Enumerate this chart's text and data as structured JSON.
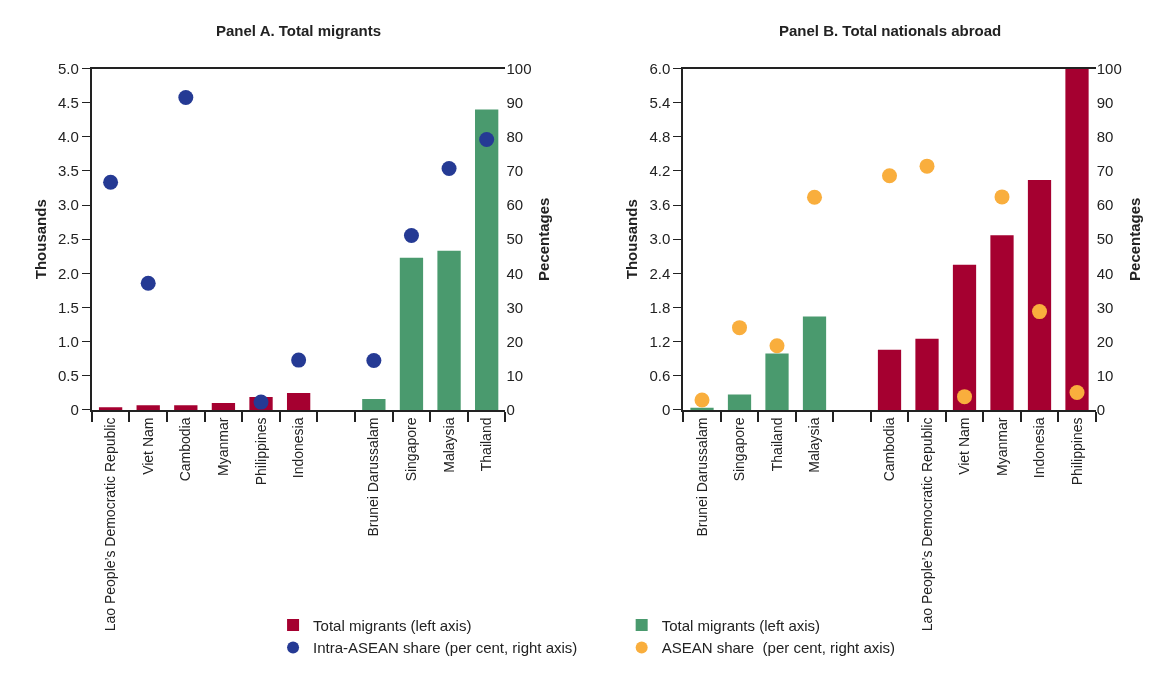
{
  "chart_data": [
    {
      "type": "bar",
      "title": "Panel A. Total migrants",
      "ylabel": "Thousands",
      "y2label": "Pecentages",
      "legend": "bottom",
      "marker": "circle",
      "categories": [
        "Lao People’s Democratic Republic",
        "Viet Nam",
        "Cambodia",
        "Myanmar",
        "Philippines",
        "Indonesia",
        null,
        "Brunei Darussalam",
        "Singapore",
        "Malaysia",
        "Thailand"
      ],
      "series": [
        {
          "name": "Total migrants (left axis)",
          "color": "#a50030",
          "values": [
            0.04,
            0.07,
            0.07,
            0.1,
            0.19,
            0.25,
            null,
            null,
            null,
            null,
            null
          ]
        },
        {
          "color": "#4a9a6e",
          "values": [
            null,
            null,
            null,
            null,
            null,
            null,
            null,
            0.16,
            2.23,
            2.33,
            4.4
          ]
        },
        {
          "name": "Intra-ASEAN share (per cent, right axis)",
          "type": "scatter",
          "axis": "y2",
          "color": "#253a94",
          "values": [
            66.7,
            37.1,
            91.5,
            null,
            2.3,
            14.6,
            null,
            14.5,
            51.1,
            70.7,
            79.2
          ]
        }
      ],
      "ylim": [
        0,
        5
      ],
      "yticks": [
        {
          "value": 0,
          "label": "0"
        },
        {
          "value": 0.5,
          "label": "0.5"
        },
        {
          "value": 1,
          "label": "1.0"
        },
        {
          "value": 1.5,
          "label": "1.5"
        },
        {
          "value": 2,
          "label": "2.0"
        },
        {
          "value": 2.5,
          "label": "2.5"
        },
        {
          "value": 3,
          "label": "3.0"
        },
        {
          "value": 3.5,
          "label": "3.5"
        },
        {
          "value": 4,
          "label": "4.0"
        },
        {
          "value": 4.5,
          "label": "4.5"
        },
        {
          "value": 5,
          "label": "5.0"
        }
      ],
      "y2lim": [
        0,
        100
      ],
      "y2ticks": [
        0,
        10,
        20,
        30,
        40,
        50,
        60,
        70,
        80,
        90,
        100
      ]
    },
    {
      "type": "bar",
      "title": "Panel B. Total nationals abroad",
      "ylabel": "Thousands",
      "y2label": "Pecentages",
      "legend": "bottom",
      "marker": "circle",
      "categories": [
        "Brunei Darussalam",
        "Singapore",
        "Thailand",
        "Malaysia",
        null,
        "Cambodia",
        "Lao People’s Democratic Republic",
        "Viet Nam",
        "Myanmar",
        "Indonesia",
        "Philippines"
      ],
      "series": [
        {
          "name": "Total migrants (left axis)",
          "color": "#4a9a6e",
          "values": [
            0.04,
            0.27,
            0.99,
            1.64,
            null,
            null,
            null,
            null,
            null,
            null,
            null
          ]
        },
        {
          "color": "#a50030",
          "values": [
            null,
            null,
            null,
            null,
            null,
            1.06,
            1.25,
            2.55,
            3.07,
            4.04,
            6.0
          ]
        },
        {
          "name": "ASEAN share  (per cent, right axis)",
          "type": "scatter",
          "axis": "y2",
          "color": "#f9ae3d",
          "values": [
            2.9,
            24.1,
            18.8,
            62.3,
            null,
            68.6,
            71.4,
            3.9,
            62.4,
            28.8,
            5.1
          ]
        }
      ],
      "ylim": [
        0,
        6
      ],
      "yticks": [
        {
          "value": 0,
          "label": "0"
        },
        {
          "value": 0.6,
          "label": "0.6"
        },
        {
          "value": 1.2,
          "label": "1.2"
        },
        {
          "value": 1.8,
          "label": "1.8"
        },
        {
          "value": 2.4,
          "label": "2.4"
        },
        {
          "value": 3,
          "label": "3.0"
        },
        {
          "value": 3.6,
          "label": "3.6"
        },
        {
          "value": 4.2,
          "label": "4.2"
        },
        {
          "value": 4.8,
          "label": "4.8"
        },
        {
          "value": 5.4,
          "label": "5.4"
        },
        {
          "value": 6,
          "label": "6.0"
        }
      ],
      "y2lim": [
        0,
        100
      ],
      "y2ticks": [
        0,
        10,
        20,
        30,
        40,
        50,
        60,
        70,
        80,
        90,
        100
      ]
    }
  ]
}
